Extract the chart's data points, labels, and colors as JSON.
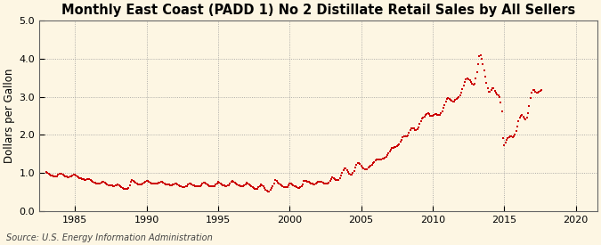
{
  "title": "Monthly East Coast (PADD 1) No 2 Distillate Retail Sales by All Sellers",
  "ylabel": "Dollars per Gallon",
  "source": "Source: U.S. Energy Information Administration",
  "xlim": [
    1982.5,
    2021.5
  ],
  "ylim": [
    0.0,
    5.0
  ],
  "xticks": [
    1985,
    1990,
    1995,
    2000,
    2005,
    2010,
    2015,
    2020
  ],
  "yticks": [
    0.0,
    1.0,
    2.0,
    3.0,
    4.0,
    5.0
  ],
  "background_color": "#fdf6e3",
  "line_color": "#cc0000",
  "marker_size": 3.5,
  "title_fontsize": 10.5,
  "label_fontsize": 8.5,
  "tick_fontsize": 8,
  "source_fontsize": 7,
  "prices": [
    1.023,
    0.993,
    0.971,
    0.952,
    0.934,
    0.924,
    0.908,
    0.909,
    0.906,
    0.916,
    0.946,
    0.979,
    0.983,
    0.969,
    0.949,
    0.932,
    0.914,
    0.9,
    0.888,
    0.891,
    0.896,
    0.907,
    0.93,
    0.962,
    0.952,
    0.929,
    0.907,
    0.888,
    0.866,
    0.852,
    0.835,
    0.828,
    0.823,
    0.822,
    0.83,
    0.845,
    0.838,
    0.82,
    0.798,
    0.771,
    0.752,
    0.738,
    0.729,
    0.728,
    0.724,
    0.729,
    0.744,
    0.758,
    0.763,
    0.742,
    0.718,
    0.695,
    0.679,
    0.67,
    0.664,
    0.661,
    0.656,
    0.658,
    0.668,
    0.68,
    0.685,
    0.672,
    0.653,
    0.629,
    0.607,
    0.59,
    0.571,
    0.569,
    0.579,
    0.609,
    0.674,
    0.758,
    0.815,
    0.785,
    0.76,
    0.735,
    0.713,
    0.701,
    0.698,
    0.7,
    0.705,
    0.715,
    0.735,
    0.77,
    0.795,
    0.781,
    0.762,
    0.743,
    0.728,
    0.719,
    0.714,
    0.714,
    0.716,
    0.72,
    0.733,
    0.752,
    0.77,
    0.756,
    0.735,
    0.717,
    0.703,
    0.695,
    0.69,
    0.686,
    0.681,
    0.682,
    0.691,
    0.705,
    0.72,
    0.709,
    0.695,
    0.677,
    0.66,
    0.648,
    0.637,
    0.63,
    0.63,
    0.638,
    0.658,
    0.692,
    0.726,
    0.717,
    0.7,
    0.682,
    0.669,
    0.66,
    0.653,
    0.648,
    0.65,
    0.66,
    0.681,
    0.714,
    0.748,
    0.734,
    0.714,
    0.692,
    0.674,
    0.659,
    0.647,
    0.641,
    0.644,
    0.659,
    0.688,
    0.729,
    0.765,
    0.75,
    0.728,
    0.703,
    0.682,
    0.666,
    0.656,
    0.654,
    0.661,
    0.68,
    0.712,
    0.756,
    0.799,
    0.777,
    0.749,
    0.72,
    0.695,
    0.677,
    0.661,
    0.653,
    0.65,
    0.655,
    0.672,
    0.698,
    0.733,
    0.717,
    0.696,
    0.67,
    0.645,
    0.622,
    0.601,
    0.586,
    0.581,
    0.59,
    0.614,
    0.655,
    0.7,
    0.675,
    0.641,
    0.601,
    0.562,
    0.532,
    0.516,
    0.519,
    0.545,
    0.591,
    0.655,
    0.73,
    0.803,
    0.78,
    0.751,
    0.72,
    0.692,
    0.668,
    0.645,
    0.629,
    0.62,
    0.621,
    0.636,
    0.665,
    0.717,
    0.71,
    0.697,
    0.679,
    0.659,
    0.641,
    0.622,
    0.608,
    0.604,
    0.616,
    0.649,
    0.706,
    0.784,
    0.784,
    0.781,
    0.774,
    0.762,
    0.745,
    0.727,
    0.712,
    0.704,
    0.706,
    0.718,
    0.738,
    0.769,
    0.766,
    0.762,
    0.757,
    0.745,
    0.73,
    0.716,
    0.71,
    0.717,
    0.743,
    0.785,
    0.832,
    0.872,
    0.857,
    0.838,
    0.82,
    0.812,
    0.822,
    0.86,
    0.925,
    0.993,
    1.063,
    1.115,
    1.114,
    1.061,
    1.012,
    0.975,
    0.953,
    0.954,
    0.99,
    1.058,
    1.144,
    1.216,
    1.265,
    1.267,
    1.231,
    1.182,
    1.147,
    1.115,
    1.096,
    1.091,
    1.104,
    1.134,
    1.171,
    1.194,
    1.217,
    1.248,
    1.288,
    1.335,
    1.346,
    1.344,
    1.345,
    1.348,
    1.355,
    1.365,
    1.375,
    1.39,
    1.416,
    1.458,
    1.51,
    1.571,
    1.617,
    1.648,
    1.663,
    1.669,
    1.676,
    1.693,
    1.719,
    1.76,
    1.816,
    1.877,
    1.927,
    1.955,
    1.958,
    1.965,
    1.993,
    2.048,
    2.113,
    2.166,
    2.181,
    2.163,
    2.133,
    2.118,
    2.137,
    2.202,
    2.285,
    2.367,
    2.427,
    2.46,
    2.484,
    2.514,
    2.546,
    2.56,
    2.54,
    2.506,
    2.491,
    2.505,
    2.527,
    2.541,
    2.542,
    2.528,
    2.516,
    2.523,
    2.56,
    2.62,
    2.7,
    2.787,
    2.866,
    2.935,
    2.963,
    2.953,
    2.919,
    2.889,
    2.874,
    2.878,
    2.908,
    2.94,
    2.967,
    2.997,
    3.039,
    3.107,
    3.197,
    3.303,
    3.396,
    3.46,
    3.482,
    3.468,
    3.43,
    3.386,
    3.346,
    3.328,
    3.352,
    3.476,
    3.644,
    3.848,
    4.076,
    4.088,
    3.997,
    3.861,
    3.695,
    3.524,
    3.355,
    3.212,
    3.138,
    3.136,
    3.174,
    3.222,
    3.217,
    3.164,
    3.105,
    3.059,
    3.033,
    2.978,
    2.855,
    2.617,
    1.905,
    1.734,
    1.789,
    1.856,
    1.913,
    1.946,
    1.958,
    1.951,
    1.941,
    1.954,
    2.009,
    2.105,
    2.216,
    2.347,
    2.443,
    2.505,
    2.52,
    2.479,
    2.434,
    2.416,
    2.451,
    2.569,
    2.75,
    2.958,
    3.117,
    3.183,
    3.172,
    3.137,
    3.113,
    3.113,
    3.133,
    3.156,
    3.171
  ],
  "start_year": 1983,
  "start_month": 1
}
